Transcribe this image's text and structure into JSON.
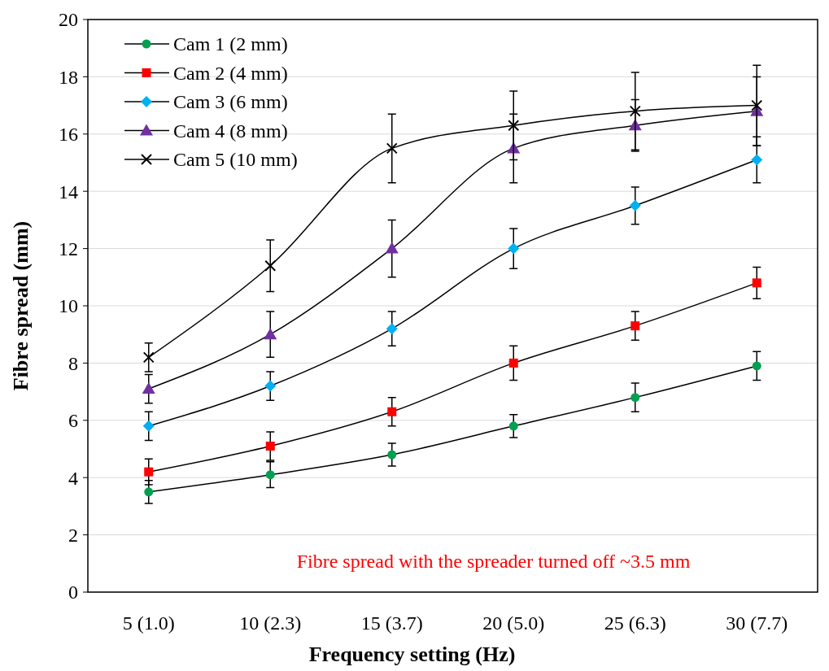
{
  "chart_data": {
    "type": "line",
    "xlabel": "Frequency setting (Hz)",
    "ylabel": "Fibre spread (mm)",
    "categories": [
      "5 (1.0)",
      "10 (2.3)",
      "15 (3.7)",
      "20 (5.0)",
      "25 (6.3)",
      "30 (7.7)"
    ],
    "series": [
      {
        "name": "Cam 1 (2 mm)",
        "color": "#00a050",
        "marker": "circle",
        "values": [
          3.5,
          4.1,
          4.8,
          5.8,
          6.8,
          7.9
        ],
        "errors": [
          0.4,
          0.45,
          0.4,
          0.4,
          0.5,
          0.5
        ]
      },
      {
        "name": "Cam 2 (4 mm)",
        "color": "#ff0000",
        "marker": "square",
        "values": [
          4.2,
          5.1,
          6.3,
          8.0,
          9.3,
          10.8
        ],
        "errors": [
          0.45,
          0.5,
          0.5,
          0.6,
          0.5,
          0.55
        ]
      },
      {
        "name": "Cam 3 (6 mm)",
        "color": "#00b0f0",
        "marker": "diamond",
        "values": [
          5.8,
          7.2,
          9.2,
          12.0,
          13.5,
          15.1
        ],
        "errors": [
          0.5,
          0.5,
          0.6,
          0.7,
          0.65,
          0.8
        ]
      },
      {
        "name": "Cam 4 (8 mm)",
        "color": "#7030a0",
        "marker": "triangle",
        "values": [
          7.1,
          9.0,
          12.0,
          15.5,
          16.3,
          16.8
        ],
        "errors": [
          0.5,
          0.8,
          1.0,
          1.2,
          0.9,
          1.2
        ]
      },
      {
        "name": "Cam 5 (10 mm)",
        "color": "#000000",
        "marker": "cross",
        "values": [
          8.2,
          11.4,
          15.5,
          16.3,
          16.8,
          17.0
        ],
        "errors": [
          0.5,
          0.9,
          1.2,
          1.2,
          1.35,
          1.4
        ]
      }
    ],
    "ylim": [
      0,
      20
    ],
    "yticks": [
      0,
      2,
      4,
      6,
      8,
      10,
      12,
      14,
      16,
      18,
      20
    ],
    "grid": "y",
    "legend": "top left",
    "annotations": [
      "Fibre spread with the spreader turned off ~3.5 mm"
    ]
  }
}
